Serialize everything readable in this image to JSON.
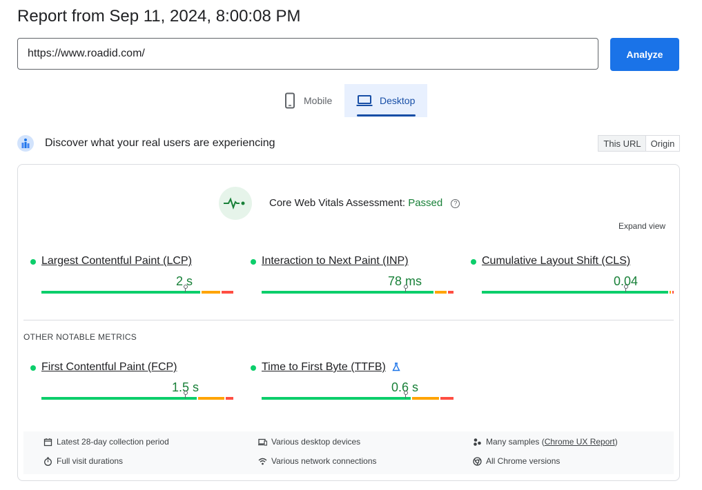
{
  "header": {
    "title": "Report from Sep 11, 2024, 8:00:08 PM"
  },
  "url_input": {
    "value": "https://www.roadid.com/"
  },
  "analyze_label": "Analyze",
  "tabs": [
    {
      "label": "Mobile",
      "icon": "phone-icon",
      "selected": false
    },
    {
      "label": "Desktop",
      "icon": "laptop-icon",
      "selected": true
    }
  ],
  "crux": {
    "heading": "Discover what your real users are experiencing",
    "scope_options": [
      "This URL",
      "Origin"
    ],
    "selected_scope": "This URL"
  },
  "assessment": {
    "label": "Core Web Vitals Assessment:",
    "status": "Passed",
    "expand_label": "Expand view"
  },
  "core_metrics": [
    {
      "name": "Largest Contentful Paint (LCP)",
      "value": "2 s",
      "status": "good",
      "distribution": {
        "good": 0.83,
        "needs_improvement": 0.1,
        "poor": 0.06
      },
      "percentile_position": 0.75
    },
    {
      "name": "Interaction to Next Paint (INP)",
      "value": "78 ms",
      "status": "good",
      "distribution": {
        "good": 0.91,
        "needs_improvement": 0.06,
        "poor": 0.03
      },
      "percentile_position": 0.75
    },
    {
      "name": "Cumulative Layout Shift (CLS)",
      "value": "0.04",
      "status": "good",
      "distribution": {
        "good": 0.985,
        "needs_improvement": 0.008,
        "poor": 0.007
      },
      "percentile_position": 0.75
    }
  ],
  "other_metrics_heading": "OTHER NOTABLE METRICS",
  "other_metrics": [
    {
      "name": "First Contentful Paint (FCP)",
      "value": "1.5 s",
      "status": "good",
      "distribution": {
        "good": 0.82,
        "needs_improvement": 0.14,
        "poor": 0.04
      },
      "percentile_position": 0.75
    },
    {
      "name": "Time to First Byte (TTFB)",
      "value": "0.6 s",
      "status": "good",
      "experimental": true,
      "distribution": {
        "good": 0.79,
        "needs_improvement": 0.14,
        "poor": 0.07
      },
      "percentile_position": 0.75
    }
  ],
  "footer": {
    "collection_period": "Latest 28-day collection period",
    "devices": "Various desktop devices",
    "samples_prefix": "Many samples (",
    "samples_link": "Chrome UX Report",
    "samples_suffix": ")",
    "durations": "Full visit durations",
    "network": "Various network connections",
    "chrome_versions": "All Chrome versions"
  },
  "colors": {
    "good": "#0cce6b",
    "needs_improvement": "#ffa400",
    "poor": "#ff4e42",
    "accent": "#1a73e8",
    "pass_text": "#188038"
  }
}
